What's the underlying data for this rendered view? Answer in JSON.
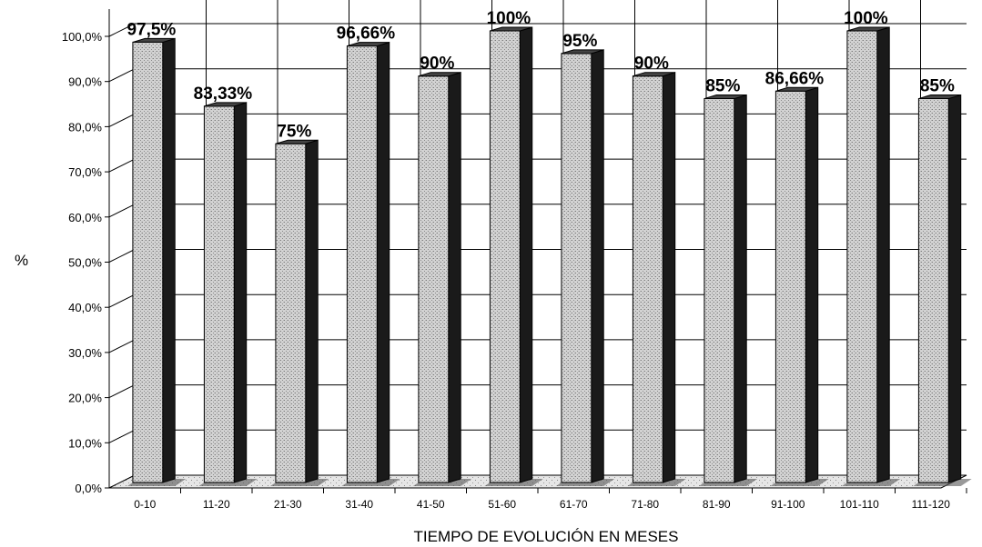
{
  "chart_data": {
    "type": "bar",
    "title": "",
    "xlabel": "TIEMPO DE EVOLUCIÓN EN MESES",
    "ylabel": "%",
    "categories": [
      "0-10",
      "11-20",
      "21-30",
      "31-40",
      "41-50",
      "51-60",
      "61-70",
      "71-80",
      "81-90",
      "91-100",
      "101-110",
      "111-120"
    ],
    "values": [
      97.5,
      83.33,
      75,
      96.66,
      90,
      100,
      95,
      90,
      85,
      86.66,
      100,
      85
    ],
    "data_labels": [
      "97,5%",
      "83,33%",
      "75%",
      "96,66%",
      "90%",
      "100%",
      "95%",
      "90%",
      "85%",
      "86,66%",
      "100%",
      "85%"
    ],
    "ylim": [
      0,
      100
    ],
    "yticks": [
      "0,0%",
      "10,0%",
      "20,0%",
      "30,0%",
      "40,0%",
      "50,0%",
      "60,0%",
      "70,0%",
      "80,0%",
      "90,0%",
      "100,0%"
    ],
    "grid": true,
    "legend": "none",
    "colors": {
      "bar_front": "#c4c4c4",
      "bar_side": "#1a1a1a",
      "grid": "#000000"
    }
  }
}
